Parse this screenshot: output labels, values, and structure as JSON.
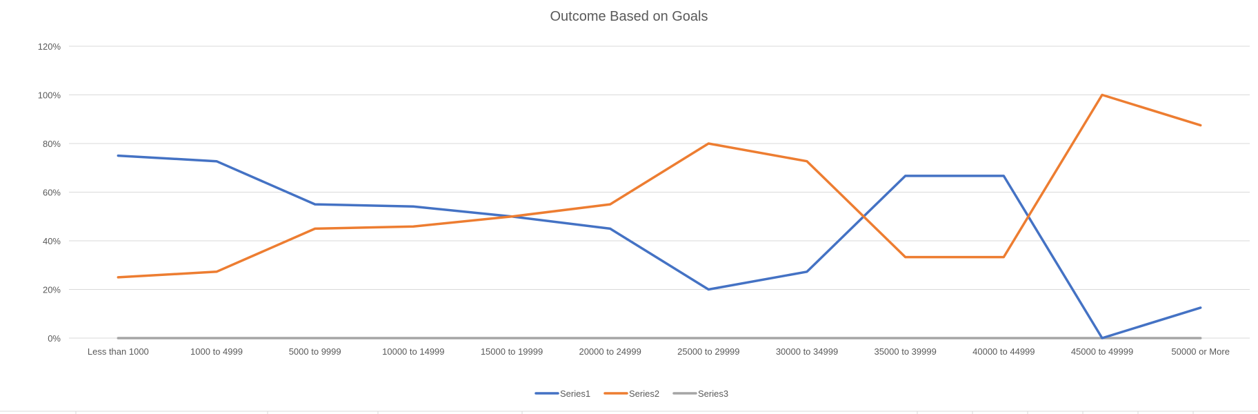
{
  "chart_data": {
    "type": "line",
    "title": "Outcome Based on Goals",
    "xlabel": "",
    "ylabel": "",
    "categories": [
      "Less than 1000",
      "1000 to 4999",
      "5000 to 9999",
      "10000 to 14999",
      "15000 to 19999",
      "20000 to 24999",
      "25000 to 29999",
      "30000 to 34999",
      "35000 to 39999",
      "40000 to 44999",
      "45000 to 49999",
      "50000 or More"
    ],
    "series": [
      {
        "name": "Series1",
        "color": "#4472C4",
        "values": [
          0.75,
          0.727,
          0.55,
          0.541,
          0.5,
          0.45,
          0.2,
          0.273,
          0.667,
          0.667,
          0.0,
          0.125
        ]
      },
      {
        "name": "Series2",
        "color": "#ED7D31",
        "values": [
          0.25,
          0.273,
          0.45,
          0.459,
          0.5,
          0.55,
          0.8,
          0.727,
          0.333,
          0.333,
          1.0,
          0.875
        ]
      },
      {
        "name": "Series3",
        "color": "#A5A5A5",
        "values": [
          0,
          0,
          0,
          0,
          0,
          0,
          0,
          0,
          0,
          0,
          0,
          0
        ]
      }
    ],
    "ylim": [
      0,
      1.2
    ],
    "yticks": [
      0,
      0.2,
      0.4,
      0.6,
      0.8,
      1.0,
      1.2
    ],
    "ytick_labels": [
      "0%",
      "20%",
      "40%",
      "60%",
      "80%",
      "100%",
      "120%"
    ],
    "grid": true,
    "gridline_color": "#D9D9D9",
    "legend_position": "bottom"
  }
}
